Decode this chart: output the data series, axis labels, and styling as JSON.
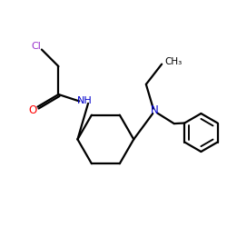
{
  "bg_color": "#ffffff",
  "cl_color": "#9933cc",
  "o_color": "#ff0000",
  "nh_color": "#0000cd",
  "n_color": "#0000cd",
  "bond_color": "#000000",
  "bond_lw": 1.6,
  "fig_size": [
    2.5,
    2.5
  ],
  "dpi": 100,
  "xlim": [
    0,
    10
  ],
  "ylim": [
    0,
    10
  ],
  "cl_label": "Cl",
  "o_label": "O",
  "nh_label": "NH",
  "n_label": "N",
  "ch3_label": "CH₃"
}
